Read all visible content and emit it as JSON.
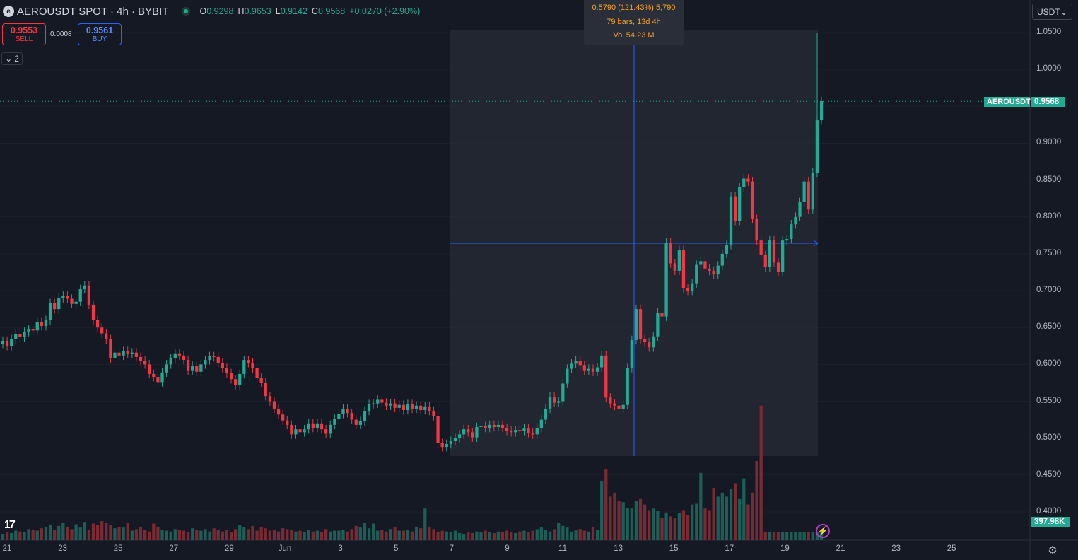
{
  "header": {
    "logo_letter": "e",
    "symbol": "AEROUSDT SPOT · 4h · BYBIT",
    "o_label": "O",
    "o": "0.9298",
    "h_label": "H",
    "h": "0.9653",
    "l_label": "L",
    "l": "0.9142",
    "c_label": "C",
    "c": "0.9568",
    "change": "+0.0270 (+2.90%)"
  },
  "trade": {
    "sell_price": "0.9553",
    "sell_label": "SELL",
    "spread": "0.0008",
    "buy_price": "0.9561",
    "buy_label": "BUY"
  },
  "indicators_toggle": {
    "count": "2"
  },
  "measure_info": {
    "line1": "0.5790 (121.43%) 5,790",
    "line2": "79 bars, 13d 4h",
    "line3": "Vol 54.23 M"
  },
  "currency_button": "USDT",
  "price_axis": [
    "1.0500",
    "1.0000",
    "0.9500",
    "0.9000",
    "0.8500",
    "0.8000",
    "0.7500",
    "0.7000",
    "0.6500",
    "0.6000",
    "0.5500",
    "0.5000",
    "0.4500",
    "0.4000"
  ],
  "time_axis": [
    "21",
    "23",
    "25",
    "27",
    "29",
    "Jun",
    "3",
    "5",
    "7",
    "9",
    "11",
    "13",
    "15",
    "17",
    "19",
    "21",
    "23",
    "25"
  ],
  "last_price_tag": {
    "symbol": "AEROUSDT",
    "price": "0.9568"
  },
  "volume_tag": "397.98K",
  "colors": {
    "up": "#22ab94",
    "down": "#f23645",
    "background": "#151924",
    "measure": "#2962ff",
    "info_text": "#f7a21b"
  },
  "icons": {
    "tradingview_logo": "tv-logo",
    "lightning": "lightning-icon",
    "settings": "gear-icon"
  },
  "chart_data": {
    "type": "candlestick",
    "title": "AEROUSDT SPOT · 4h · BYBIT",
    "ylim": [
      0.39,
      1.07
    ],
    "x_labels": [
      "21",
      "23",
      "25",
      "27",
      "29",
      "Jun",
      "3",
      "5",
      "7",
      "9",
      "11",
      "13",
      "15",
      "17",
      "19",
      "21",
      "23",
      "25"
    ],
    "series": [
      {
        "name": "price",
        "o": 0.628,
        "c": 0.632
      },
      {
        "o": 0.632,
        "c": 0.625
      },
      {
        "o": 0.625,
        "c": 0.634
      },
      {
        "o": 0.634,
        "c": 0.641
      },
      {
        "o": 0.641,
        "c": 0.637
      },
      {
        "o": 0.637,
        "c": 0.644
      },
      {
        "o": 0.644,
        "c": 0.648
      },
      {
        "o": 0.648,
        "c": 0.646
      },
      {
        "o": 0.646,
        "c": 0.657
      },
      {
        "o": 0.657,
        "c": 0.652
      },
      {
        "o": 0.652,
        "c": 0.66
      },
      {
        "o": 0.66,
        "c": 0.683
      },
      {
        "o": 0.683,
        "c": 0.675
      },
      {
        "o": 0.675,
        "c": 0.69
      },
      {
        "o": 0.69,
        "c": 0.693
      },
      {
        "o": 0.693,
        "c": 0.689
      },
      {
        "o": 0.689,
        "c": 0.682
      },
      {
        "o": 0.682,
        "c": 0.685
      },
      {
        "o": 0.685,
        "c": 0.702
      },
      {
        "o": 0.702,
        "c": 0.707
      },
      {
        "o": 0.707,
        "c": 0.681
      },
      {
        "o": 0.681,
        "c": 0.66
      },
      {
        "o": 0.66,
        "c": 0.65
      },
      {
        "o": 0.65,
        "c": 0.642
      },
      {
        "o": 0.642,
        "c": 0.634
      },
      {
        "o": 0.634,
        "c": 0.608
      },
      {
        "o": 0.608,
        "c": 0.616
      },
      {
        "o": 0.616,
        "c": 0.612
      },
      {
        "o": 0.612,
        "c": 0.618
      },
      {
        "o": 0.618,
        "c": 0.614
      },
      {
        "o": 0.614,
        "c": 0.616
      },
      {
        "o": 0.616,
        "c": 0.61
      },
      {
        "o": 0.61,
        "c": 0.605
      },
      {
        "o": 0.605,
        "c": 0.6
      },
      {
        "o": 0.6,
        "c": 0.587
      },
      {
        "o": 0.587,
        "c": 0.583
      },
      {
        "o": 0.583,
        "c": 0.576
      },
      {
        "o": 0.576,
        "c": 0.589
      },
      {
        "o": 0.589,
        "c": 0.6
      },
      {
        "o": 0.6,
        "c": 0.608
      },
      {
        "o": 0.608,
        "c": 0.615
      },
      {
        "o": 0.615,
        "c": 0.612
      },
      {
        "o": 0.612,
        "c": 0.606
      },
      {
        "o": 0.606,
        "c": 0.592
      },
      {
        "o": 0.592,
        "c": 0.598
      },
      {
        "o": 0.598,
        "c": 0.59
      },
      {
        "o": 0.59,
        "c": 0.6
      },
      {
        "o": 0.6,
        "c": 0.606
      },
      {
        "o": 0.606,
        "c": 0.611
      },
      {
        "o": 0.611,
        "c": 0.61
      },
      {
        "o": 0.61,
        "c": 0.602
      },
      {
        "o": 0.602,
        "c": 0.595
      },
      {
        "o": 0.595,
        "c": 0.588
      },
      {
        "o": 0.588,
        "c": 0.58
      },
      {
        "o": 0.58,
        "c": 0.572
      },
      {
        "o": 0.572,
        "c": 0.587
      },
      {
        "o": 0.587,
        "c": 0.606
      },
      {
        "o": 0.606,
        "c": 0.602
      },
      {
        "o": 0.602,
        "c": 0.595
      },
      {
        "o": 0.595,
        "c": 0.582
      },
      {
        "o": 0.582,
        "c": 0.575
      },
      {
        "o": 0.575,
        "c": 0.557
      },
      {
        "o": 0.557,
        "c": 0.55
      },
      {
        "o": 0.55,
        "c": 0.54
      },
      {
        "o": 0.54,
        "c": 0.532
      },
      {
        "o": 0.532,
        "c": 0.524
      },
      {
        "o": 0.524,
        "c": 0.518
      },
      {
        "o": 0.518,
        "c": 0.505
      },
      {
        "o": 0.505,
        "c": 0.512
      },
      {
        "o": 0.512,
        "c": 0.508
      },
      {
        "o": 0.508,
        "c": 0.512
      },
      {
        "o": 0.512,
        "c": 0.52
      },
      {
        "o": 0.52,
        "c": 0.514
      },
      {
        "o": 0.514,
        "c": 0.52
      },
      {
        "o": 0.52,
        "c": 0.512
      },
      {
        "o": 0.512,
        "c": 0.506
      },
      {
        "o": 0.506,
        "c": 0.518
      },
      {
        "o": 0.518,
        "c": 0.526
      },
      {
        "o": 0.526,
        "c": 0.533
      },
      {
        "o": 0.533,
        "c": 0.54
      },
      {
        "o": 0.54,
        "c": 0.534
      },
      {
        "o": 0.534,
        "c": 0.525
      },
      {
        "o": 0.525,
        "c": 0.518
      },
      {
        "o": 0.518,
        "c": 0.523
      },
      {
        "o": 0.523,
        "c": 0.537
      },
      {
        "o": 0.537,
        "c": 0.546
      },
      {
        "o": 0.546,
        "c": 0.547
      },
      {
        "o": 0.547,
        "c": 0.552
      },
      {
        "o": 0.552,
        "c": 0.548
      },
      {
        "o": 0.548,
        "c": 0.544
      },
      {
        "o": 0.544,
        "c": 0.547
      },
      {
        "o": 0.547,
        "c": 0.541
      },
      {
        "o": 0.541,
        "c": 0.545
      },
      {
        "o": 0.545,
        "c": 0.538
      },
      {
        "o": 0.538,
        "c": 0.546
      },
      {
        "o": 0.546,
        "c": 0.54
      },
      {
        "o": 0.54,
        "c": 0.544
      },
      {
        "o": 0.544,
        "c": 0.538
      },
      {
        "o": 0.538,
        "c": 0.543
      },
      {
        "o": 0.543,
        "c": 0.537
      },
      {
        "o": 0.537,
        "c": 0.53
      },
      {
        "o": 0.53,
        "c": 0.493
      },
      {
        "o": 0.493,
        "c": 0.488
      },
      {
        "o": 0.488,
        "c": 0.492
      },
      {
        "o": 0.492,
        "c": 0.496
      },
      {
        "o": 0.496,
        "c": 0.5
      },
      {
        "o": 0.5,
        "c": 0.505
      },
      {
        "o": 0.505,
        "c": 0.512
      },
      {
        "o": 0.512,
        "c": 0.508
      },
      {
        "o": 0.508,
        "c": 0.501
      },
      {
        "o": 0.501,
        "c": 0.515
      },
      {
        "o": 0.515,
        "c": 0.516
      },
      {
        "o": 0.516,
        "c": 0.514
      },
      {
        "o": 0.514,
        "c": 0.518
      },
      {
        "o": 0.518,
        "c": 0.515
      },
      {
        "o": 0.515,
        "c": 0.518
      },
      {
        "o": 0.518,
        "c": 0.514
      },
      {
        "o": 0.514,
        "c": 0.51
      },
      {
        "o": 0.51,
        "c": 0.508
      },
      {
        "o": 0.508,
        "c": 0.511
      },
      {
        "o": 0.511,
        "c": 0.51
      },
      {
        "o": 0.51,
        "c": 0.513
      },
      {
        "o": 0.513,
        "c": 0.507
      },
      {
        "o": 0.507,
        "c": 0.505
      },
      {
        "o": 0.505,
        "c": 0.514
      },
      {
        "o": 0.514,
        "c": 0.525
      },
      {
        "o": 0.525,
        "c": 0.54
      },
      {
        "o": 0.54,
        "c": 0.556
      },
      {
        "o": 0.556,
        "c": 0.548
      },
      {
        "o": 0.548,
        "c": 0.55
      },
      {
        "o": 0.55,
        "c": 0.574
      },
      {
        "o": 0.574,
        "c": 0.594
      },
      {
        "o": 0.594,
        "c": 0.601
      },
      {
        "o": 0.601,
        "c": 0.605
      },
      {
        "o": 0.605,
        "c": 0.599
      },
      {
        "o": 0.599,
        "c": 0.592
      },
      {
        "o": 0.592,
        "c": 0.594
      },
      {
        "o": 0.594,
        "c": 0.59
      },
      {
        "o": 0.59,
        "c": 0.596
      },
      {
        "o": 0.596,
        "c": 0.612
      },
      {
        "o": 0.612,
        "c": 0.555
      },
      {
        "o": 0.555,
        "c": 0.547
      },
      {
        "o": 0.547,
        "c": 0.544
      },
      {
        "o": 0.544,
        "c": 0.54
      },
      {
        "o": 0.54,
        "c": 0.545
      },
      {
        "o": 0.545,
        "c": 0.595
      },
      {
        "o": 0.595,
        "c": 0.633
      },
      {
        "o": 0.633,
        "c": 0.675
      },
      {
        "o": 0.675,
        "c": 0.634
      },
      {
        "o": 0.634,
        "c": 0.63
      },
      {
        "o": 0.63,
        "c": 0.623
      },
      {
        "o": 0.623,
        "c": 0.638
      },
      {
        "o": 0.638,
        "c": 0.67
      },
      {
        "o": 0.67,
        "c": 0.665
      },
      {
        "o": 0.665,
        "c": 0.765
      },
      {
        "o": 0.765,
        "c": 0.737
      },
      {
        "o": 0.737,
        "c": 0.727
      },
      {
        "o": 0.727,
        "c": 0.755
      },
      {
        "o": 0.755,
        "c": 0.703
      },
      {
        "o": 0.703,
        "c": 0.7
      },
      {
        "o": 0.7,
        "c": 0.71
      },
      {
        "o": 0.71,
        "c": 0.735
      },
      {
        "o": 0.735,
        "c": 0.74
      },
      {
        "o": 0.74,
        "c": 0.73
      },
      {
        "o": 0.73,
        "c": 0.727
      },
      {
        "o": 0.727,
        "c": 0.722
      },
      {
        "o": 0.722,
        "c": 0.734
      },
      {
        "o": 0.734,
        "c": 0.75
      },
      {
        "o": 0.75,
        "c": 0.762
      },
      {
        "o": 0.762,
        "c": 0.828
      },
      {
        "o": 0.828,
        "c": 0.795
      },
      {
        "o": 0.795,
        "c": 0.84
      },
      {
        "o": 0.84,
        "c": 0.852
      },
      {
        "o": 0.852,
        "c": 0.848
      },
      {
        "o": 0.848,
        "c": 0.797
      },
      {
        "o": 0.797,
        "c": 0.768
      },
      {
        "o": 0.768,
        "c": 0.748
      },
      {
        "o": 0.748,
        "c": 0.732
      },
      {
        "o": 0.732,
        "c": 0.768
      },
      {
        "o": 0.768,
        "c": 0.738
      },
      {
        "o": 0.738,
        "c": 0.725
      },
      {
        "o": 0.725,
        "c": 0.768
      },
      {
        "o": 0.768,
        "c": 0.77
      },
      {
        "o": 0.77,
        "c": 0.79
      },
      {
        "o": 0.79,
        "c": 0.8
      },
      {
        "o": 0.8,
        "c": 0.82
      },
      {
        "o": 0.82,
        "c": 0.848
      },
      {
        "o": 0.848,
        "c": 0.81
      },
      {
        "o": 0.81,
        "c": 0.86
      },
      {
        "o": 0.86,
        "c": 0.931
      },
      {
        "o": 0.931,
        "c": 0.957
      }
    ],
    "volume": [
      8,
      10,
      9,
      12,
      11,
      10,
      14,
      13,
      12,
      15,
      16,
      19,
      13,
      18,
      22,
      17,
      14,
      20,
      16,
      23,
      13,
      21,
      19,
      24,
      22,
      19,
      15,
      17,
      16,
      22,
      12,
      14,
      16,
      13,
      11,
      21,
      17,
      13,
      12,
      11,
      14,
      13,
      12,
      10,
      15,
      13,
      12,
      14,
      11,
      15,
      13,
      11,
      13,
      10,
      14,
      19,
      16,
      14,
      18,
      12,
      16,
      15,
      12,
      13,
      11,
      15,
      14,
      13,
      11,
      12,
      10,
      13,
      11,
      12,
      10,
      14,
      11,
      12,
      12,
      13,
      11,
      14,
      18,
      16,
      22,
      15,
      21,
      12,
      13,
      11,
      14,
      16,
      12,
      12,
      13,
      11,
      17,
      15,
      40,
      16,
      14,
      10,
      12,
      11,
      10,
      12,
      9,
      8,
      10,
      9,
      11,
      10,
      12,
      10,
      9,
      11,
      10,
      12,
      10,
      9,
      11,
      12,
      10,
      12,
      14,
      16,
      13,
      11,
      14,
      22,
      18,
      16,
      11,
      13,
      14,
      12,
      11,
      16,
      13,
      75,
      90,
      55,
      60,
      50,
      48,
      41,
      40,
      50,
      52,
      45,
      38,
      40,
      37,
      28,
      35,
      30,
      28,
      34,
      38,
      32,
      45,
      46,
      85,
      40,
      38,
      66,
      55,
      60,
      55,
      65,
      72,
      52,
      78,
      45,
      60,
      100,
      170
    ]
  }
}
